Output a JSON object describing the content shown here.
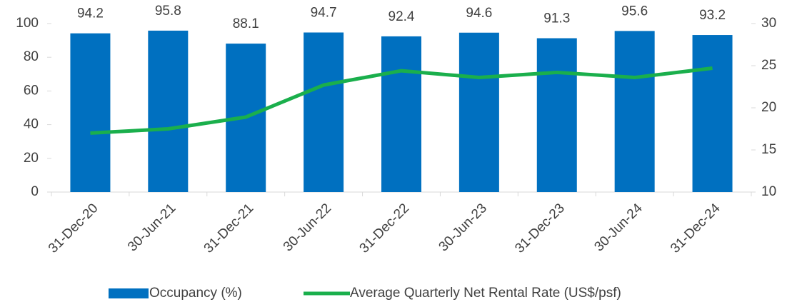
{
  "chart_data": {
    "type": "bar",
    "categories": [
      "31-Dec-20",
      "30-Jun-21",
      "31-Dec-21",
      "30-Jun-22",
      "31-Dec-22",
      "30-Jun-23",
      "31-Dec-23",
      "30-Jun-24",
      "31-Dec-24"
    ],
    "series": [
      {
        "name": "Occupancy (%)",
        "type": "bar",
        "color": "#0070c0",
        "values": [
          94.2,
          95.8,
          88.1,
          94.7,
          92.4,
          94.6,
          91.3,
          95.6,
          93.2
        ]
      },
      {
        "name": "Average Quarterly Net Rental Rate (US$/psf)",
        "type": "line",
        "axis": "y2",
        "color": "#1aaf4c",
        "values": [
          17.0,
          17.5,
          18.9,
          22.7,
          24.4,
          23.6,
          24.2,
          23.6,
          24.7
        ]
      }
    ],
    "ylim": [
      0,
      100
    ],
    "yticks": [
      0,
      20,
      40,
      60,
      80,
      100
    ],
    "y2lim": [
      10,
      30
    ],
    "y2ticks": [
      10,
      15,
      20,
      25,
      30
    ],
    "legend": "bottom"
  }
}
